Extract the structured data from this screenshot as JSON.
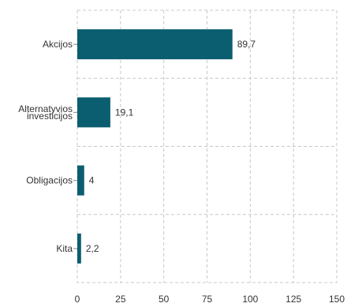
{
  "chart_data": {
    "type": "bar",
    "orientation": "horizontal",
    "categories": [
      "Akcijos",
      "Alternatyvios investicijos",
      "Obligacijos",
      "Kita"
    ],
    "category_label_lines": [
      [
        "Akcijos"
      ],
      [
        "Alternatyvios",
        "investicijos"
      ],
      [
        "Obligacijos"
      ],
      [
        "Kita"
      ]
    ],
    "values": [
      89.7,
      19.1,
      4,
      2.2
    ],
    "data_labels": [
      "89,7",
      "19,1",
      "4",
      "2,2"
    ],
    "title": "",
    "xlabel": "",
    "ylabel": "",
    "xlim": [
      0,
      150
    ],
    "x_ticks": [
      0,
      25,
      50,
      75,
      100,
      125,
      150
    ],
    "x_tick_labels": [
      "0",
      "25",
      "50",
      "75",
      "100",
      "125",
      "150"
    ],
    "grid": true,
    "bar_color": "#0b5e6f"
  }
}
